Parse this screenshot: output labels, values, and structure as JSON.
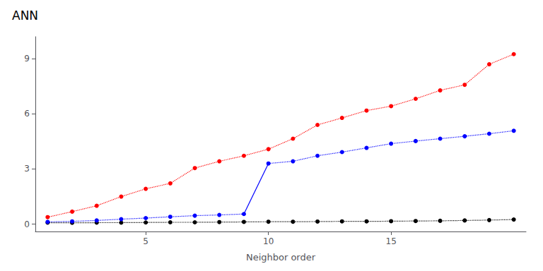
{
  "chart_data": {
    "type": "line",
    "title": "ANN",
    "xlabel": "Neighbor order",
    "xlim": [
      0.5,
      20.5
    ],
    "xticks": [
      5,
      10,
      15
    ],
    "ylim": [
      -0.4,
      10.2
    ],
    "yticks": [
      0,
      3,
      6,
      9
    ],
    "grid": false,
    "series": [
      {
        "color": "#000000",
        "line_style": "dotted",
        "marker": "circle",
        "x": [
          1,
          2,
          3,
          4,
          5,
          6,
          7,
          8,
          9,
          10,
          11,
          12,
          13,
          14,
          15,
          16,
          17,
          18,
          19,
          20
        ],
        "values": [
          0.08,
          0.07,
          0.08,
          0.08,
          0.09,
          0.1,
          0.1,
          0.11,
          0.12,
          0.13,
          0.13,
          0.14,
          0.15,
          0.15,
          0.16,
          0.17,
          0.18,
          0.2,
          0.22,
          0.25
        ]
      },
      {
        "color": "#ff0000",
        "line_style": "dotted",
        "marker": "circle",
        "x": [
          1,
          2,
          3,
          4,
          5,
          6,
          7,
          8,
          9,
          10,
          11,
          12,
          13,
          14,
          15,
          16,
          17,
          18,
          19,
          20
        ],
        "values": [
          0.38,
          0.68,
          1.0,
          1.5,
          1.92,
          2.22,
          3.05,
          3.42,
          3.72,
          4.08,
          4.65,
          5.4,
          5.78,
          6.18,
          6.42,
          6.82,
          7.28,
          7.58,
          8.7,
          9.25
        ]
      },
      {
        "color": "#0000ff",
        "line_style": "dotted",
        "marker": "circle",
        "x": [
          1,
          2,
          3,
          4,
          5,
          6,
          7,
          8,
          9
        ],
        "values": [
          0.12,
          0.15,
          0.2,
          0.27,
          0.33,
          0.4,
          0.46,
          0.5,
          0.55
        ]
      },
      {
        "color": "#0000ff",
        "line_style": "dotted",
        "marker": "circle",
        "x": [
          10,
          11,
          12,
          13,
          14,
          15,
          16,
          17,
          18,
          19,
          20
        ],
        "values": [
          3.3,
          3.42,
          3.72,
          3.92,
          4.15,
          4.38,
          4.52,
          4.65,
          4.78,
          4.92,
          5.08
        ]
      },
      {
        "color": "#0000ff",
        "line_style": "solid",
        "marker": "none",
        "x": [
          9,
          10
        ],
        "values": [
          0.55,
          3.3
        ]
      }
    ]
  }
}
